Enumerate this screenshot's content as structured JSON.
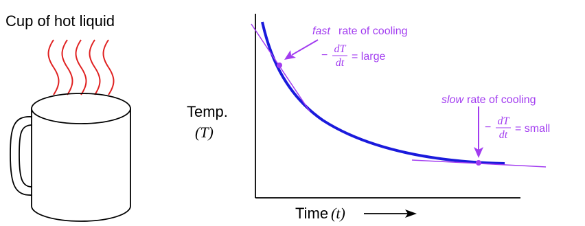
{
  "cup": {
    "label": "Cup of hot liquid"
  },
  "graph": {
    "y_axis": {
      "label": "Temp.",
      "symbol": "(T)"
    },
    "x_axis": {
      "label": "Time",
      "symbol": "(t)"
    },
    "annotations": [
      {
        "emphasis": "fast",
        "text": "rate of cooling",
        "sign": "−",
        "numerator": "dT",
        "denominator": "dt",
        "result": "= large"
      },
      {
        "emphasis": "slow",
        "text": "rate of cooling",
        "sign": "−",
        "numerator": "dT",
        "denominator": "dt",
        "result": "= small"
      }
    ]
  }
}
